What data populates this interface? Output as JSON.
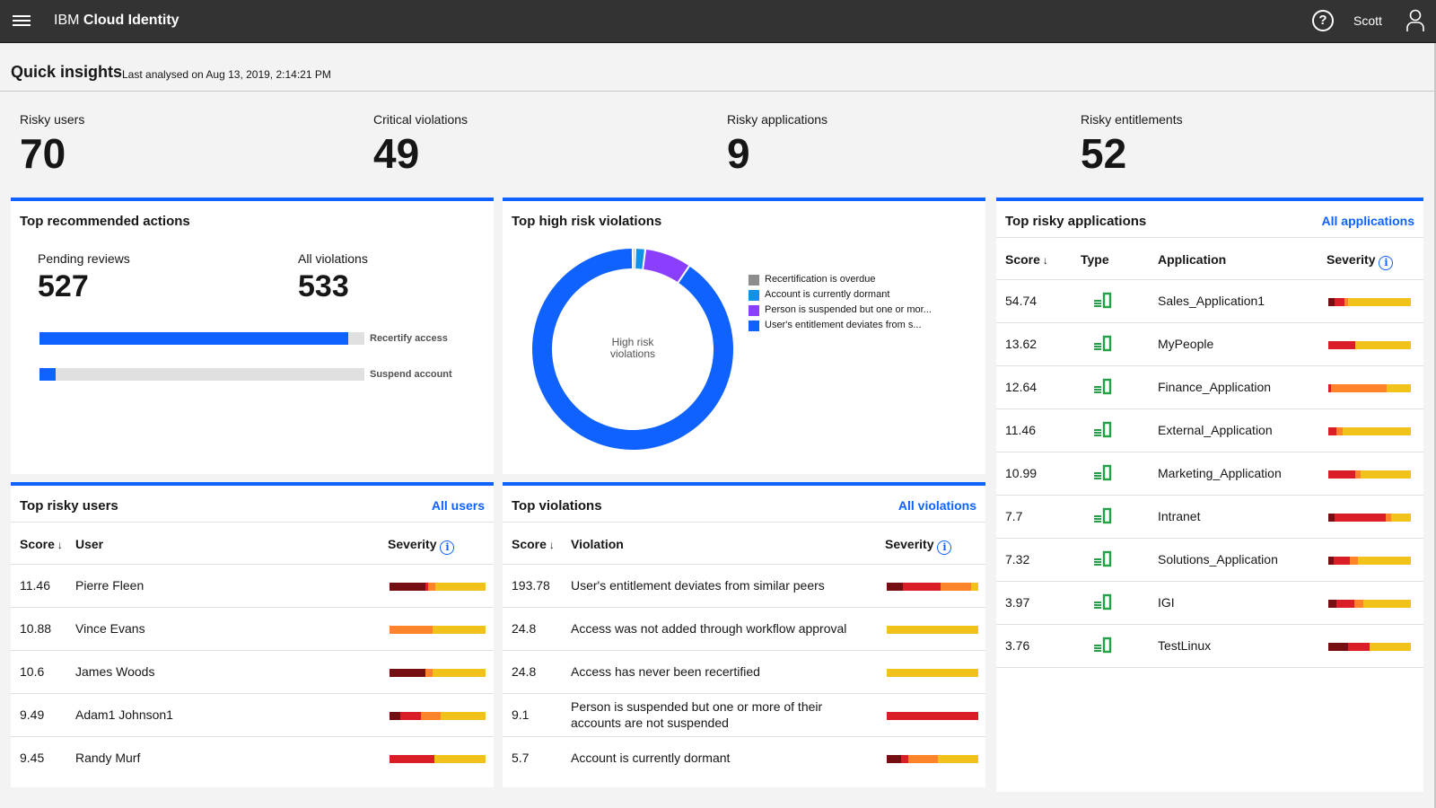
{
  "topbar": {
    "brand_prefix": "IBM",
    "brand_name": "Cloud Identity",
    "user_name": "Scott",
    "help_glyph": "?"
  },
  "insights": {
    "title": "Quick insights",
    "subtitle": "Last analysed on Aug 13, 2019, 2:14:21 PM"
  },
  "kpis": [
    {
      "label": "Risky users",
      "value": "70"
    },
    {
      "label": "Critical violations",
      "value": "49"
    },
    {
      "label": "Risky applications",
      "value": "9"
    },
    {
      "label": "Risky entitlements",
      "value": "52"
    }
  ],
  "actions": {
    "title": "Top recommended actions",
    "pending_label": "Pending reviews",
    "pending_value": "527",
    "violations_label": "All violations",
    "violations_value": "533",
    "bars": [
      {
        "label": "Recertify access",
        "fraction": 0.95
      },
      {
        "label": "Suspend account",
        "fraction": 0.05
      }
    ]
  },
  "violations_chart": {
    "title": "Top high risk violations",
    "center_label_1": "High risk",
    "center_label_2": "violations"
  },
  "chart_data": {
    "type": "pie",
    "title": "Top high risk violations",
    "categories": [
      "Recertification is overdue",
      "Account is currently dormant",
      "Person is suspended but one or mor...",
      "User's entitlement deviates from s..."
    ],
    "values": [
      0.4,
      1.6,
      7.5,
      90.5
    ],
    "colors": [
      "#8d8d8d",
      "#1192e8",
      "#8a3ffc",
      "#0f62fe"
    ],
    "legend": "right"
  },
  "apps": {
    "title": "Top risky applications",
    "link": "All applications",
    "headers": {
      "score": "Score",
      "type": "Type",
      "app": "Application",
      "severity": "Severity"
    },
    "sort_glyph": "↓",
    "info_glyph": "i",
    "rows": [
      {
        "score": "54.74",
        "name": "Sales_Application1",
        "sev": [
          {
            "c": "#750e13",
            "w": 8
          },
          {
            "c": "#da1e28",
            "w": 12
          },
          {
            "c": "#ff832b",
            "w": 4
          },
          {
            "c": "#f1c21b",
            "w": 76
          }
        ]
      },
      {
        "score": "13.62",
        "name": "MyPeople",
        "sev": [
          {
            "c": "#da1e28",
            "w": 33
          },
          {
            "c": "#f1c21b",
            "w": 67
          }
        ]
      },
      {
        "score": "12.64",
        "name": "Finance_Application",
        "sev": [
          {
            "c": "#da1e28",
            "w": 3
          },
          {
            "c": "#ff832b",
            "w": 68
          },
          {
            "c": "#f1c21b",
            "w": 29
          }
        ]
      },
      {
        "score": "11.46",
        "name": "External_Application",
        "sev": [
          {
            "c": "#da1e28",
            "w": 10
          },
          {
            "c": "#ff832b",
            "w": 7
          },
          {
            "c": "#f1c21b",
            "w": 83
          }
        ]
      },
      {
        "score": "10.99",
        "name": "Marketing_Application",
        "sev": [
          {
            "c": "#da1e28",
            "w": 33
          },
          {
            "c": "#ff832b",
            "w": 6
          },
          {
            "c": "#f1c21b",
            "w": 61
          }
        ]
      },
      {
        "score": "7.7",
        "name": "Intranet",
        "sev": [
          {
            "c": "#750e13",
            "w": 8
          },
          {
            "c": "#da1e28",
            "w": 62
          },
          {
            "c": "#ff832b",
            "w": 6
          },
          {
            "c": "#f1c21b",
            "w": 24
          }
        ]
      },
      {
        "score": "7.32",
        "name": "Solutions_Application",
        "sev": [
          {
            "c": "#750e13",
            "w": 6
          },
          {
            "c": "#da1e28",
            "w": 20
          },
          {
            "c": "#ff832b",
            "w": 10
          },
          {
            "c": "#f1c21b",
            "w": 64
          }
        ]
      },
      {
        "score": "3.97",
        "name": "IGI",
        "sev": [
          {
            "c": "#750e13",
            "w": 10
          },
          {
            "c": "#da1e28",
            "w": 22
          },
          {
            "c": "#ff832b",
            "w": 10
          },
          {
            "c": "#f1c21b",
            "w": 58
          }
        ]
      },
      {
        "score": "3.76",
        "name": "TestLinux",
        "sev": [
          {
            "c": "#750e13",
            "w": 24
          },
          {
            "c": "#da1e28",
            "w": 26
          },
          {
            "c": "#f1c21b",
            "w": 50
          }
        ]
      }
    ]
  },
  "users": {
    "title": "Top risky users",
    "link": "All users",
    "headers": {
      "score": "Score",
      "user": "User",
      "severity": "Severity"
    },
    "rows": [
      {
        "score": "11.46",
        "name": "Pierre Fleen",
        "sev": [
          {
            "c": "#750e13",
            "w": 37
          },
          {
            "c": "#da1e28",
            "w": 3
          },
          {
            "c": "#ff832b",
            "w": 8
          },
          {
            "c": "#f1c21b",
            "w": 52
          }
        ]
      },
      {
        "score": "10.88",
        "name": "Vince Evans",
        "sev": [
          {
            "c": "#ff832b",
            "w": 45
          },
          {
            "c": "#f1c21b",
            "w": 55
          }
        ]
      },
      {
        "score": "10.6",
        "name": "James Woods",
        "sev": [
          {
            "c": "#750e13",
            "w": 37
          },
          {
            "c": "#ff832b",
            "w": 8
          },
          {
            "c": "#f1c21b",
            "w": 55
          }
        ]
      },
      {
        "score": "9.49",
        "name": "Adam1 Johnson1",
        "sev": [
          {
            "c": "#750e13",
            "w": 11
          },
          {
            "c": "#da1e28",
            "w": 22
          },
          {
            "c": "#ff832b",
            "w": 20
          },
          {
            "c": "#f1c21b",
            "w": 47
          }
        ]
      },
      {
        "score": "9.45",
        "name": "Randy Murf",
        "sev": [
          {
            "c": "#da1e28",
            "w": 47
          },
          {
            "c": "#f1c21b",
            "w": 53
          }
        ]
      }
    ]
  },
  "violations": {
    "title": "Top violations",
    "link": "All violations",
    "headers": {
      "score": "Score",
      "violation": "Violation",
      "severity": "Severity"
    },
    "rows": [
      {
        "score": "193.78",
        "text": "User's entitlement deviates from similar peers",
        "text2": "",
        "sev": [
          {
            "c": "#750e13",
            "w": 18
          },
          {
            "c": "#da1e28",
            "w": 41
          },
          {
            "c": "#ff832b",
            "w": 33
          },
          {
            "c": "#f1c21b",
            "w": 8
          }
        ]
      },
      {
        "score": "24.8",
        "text": "Access was not added through workflow approval",
        "text2": "",
        "sev": [
          {
            "c": "#f1c21b",
            "w": 100
          }
        ]
      },
      {
        "score": "24.8",
        "text": "Access has never been recertified",
        "text2": "",
        "sev": [
          {
            "c": "#f1c21b",
            "w": 100
          }
        ]
      },
      {
        "score": "9.1",
        "text": "Person is suspended but one or more of their",
        "text2": "accounts are not suspended",
        "sev": [
          {
            "c": "#da1e28",
            "w": 100
          }
        ]
      },
      {
        "score": "5.7",
        "text": "Account is currently dormant",
        "text2": "",
        "sev": [
          {
            "c": "#750e13",
            "w": 16
          },
          {
            "c": "#da1e28",
            "w": 8
          },
          {
            "c": "#ff832b",
            "w": 32
          },
          {
            "c": "#f1c21b",
            "w": 44
          }
        ]
      }
    ]
  }
}
